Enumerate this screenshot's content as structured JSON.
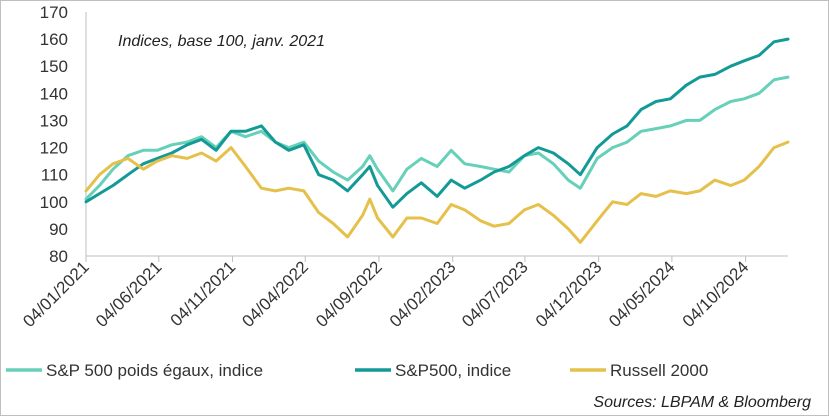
{
  "chart_data": {
    "type": "line",
    "annotation": "Indices, base 100, janv. 2021",
    "source": "Sources: LBPAM & Bloomberg",
    "ylim": [
      80,
      170
    ],
    "yticks": [
      80,
      90,
      100,
      110,
      120,
      130,
      140,
      150,
      160,
      170
    ],
    "x_start": "2021-01-04",
    "x_end": "2024-12-31",
    "xticks": [
      {
        "date": "2021-01-04",
        "label": "04/01/2021"
      },
      {
        "date": "2021-06-04",
        "label": "04/06/2021"
      },
      {
        "date": "2021-11-04",
        "label": "04/11/2021"
      },
      {
        "date": "2022-04-04",
        "label": "04/04/2022"
      },
      {
        "date": "2022-09-04",
        "label": "04/09/2022"
      },
      {
        "date": "2023-02-04",
        "label": "04/02/2023"
      },
      {
        "date": "2023-07-04",
        "label": "04/07/2023"
      },
      {
        "date": "2023-12-04",
        "label": "04/12/2023"
      },
      {
        "date": "2024-05-04",
        "label": "04/05/2024"
      },
      {
        "date": "2024-10-04",
        "label": "04/10/2024"
      }
    ],
    "grid": false,
    "legend_position": "bottom",
    "series": [
      {
        "name": "S&P 500  poids égaux, indice",
        "color": "#66d0b8",
        "points": [
          [
            "2021-01-04",
            101
          ],
          [
            "2021-02-01",
            106
          ],
          [
            "2021-03-01",
            112
          ],
          [
            "2021-04-01",
            117
          ],
          [
            "2021-05-03",
            119
          ],
          [
            "2021-06-01",
            119
          ],
          [
            "2021-07-01",
            121
          ],
          [
            "2021-08-02",
            122
          ],
          [
            "2021-09-01",
            124
          ],
          [
            "2021-10-01",
            120
          ],
          [
            "2021-11-01",
            126
          ],
          [
            "2021-12-01",
            124
          ],
          [
            "2022-01-03",
            126
          ],
          [
            "2022-02-01",
            122
          ],
          [
            "2022-03-01",
            120
          ],
          [
            "2022-04-01",
            122
          ],
          [
            "2022-05-02",
            115
          ],
          [
            "2022-06-01",
            111
          ],
          [
            "2022-07-01",
            108
          ],
          [
            "2022-08-01",
            113
          ],
          [
            "2022-08-16",
            117
          ],
          [
            "2022-09-01",
            112
          ],
          [
            "2022-10-03",
            104
          ],
          [
            "2022-11-01",
            112
          ],
          [
            "2022-12-01",
            116
          ],
          [
            "2023-01-03",
            113
          ],
          [
            "2023-02-01",
            119
          ],
          [
            "2023-03-01",
            114
          ],
          [
            "2023-04-03",
            113
          ],
          [
            "2023-05-01",
            112
          ],
          [
            "2023-06-01",
            111
          ],
          [
            "2023-07-03",
            117
          ],
          [
            "2023-08-01",
            118
          ],
          [
            "2023-09-01",
            114
          ],
          [
            "2023-10-02",
            108
          ],
          [
            "2023-10-27",
            105
          ],
          [
            "2023-12-01",
            116
          ],
          [
            "2024-01-02",
            120
          ],
          [
            "2024-02-01",
            122
          ],
          [
            "2024-03-01",
            126
          ],
          [
            "2024-04-01",
            127
          ],
          [
            "2024-05-01",
            128
          ],
          [
            "2024-06-03",
            130
          ],
          [
            "2024-07-01",
            130
          ],
          [
            "2024-08-01",
            134
          ],
          [
            "2024-09-03",
            137
          ],
          [
            "2024-10-01",
            138
          ],
          [
            "2024-11-01",
            140
          ],
          [
            "2024-12-02",
            145
          ],
          [
            "2024-12-31",
            146
          ]
        ]
      },
      {
        "name": "S&P500, indice",
        "color": "#149a96",
        "points": [
          [
            "2021-01-04",
            100
          ],
          [
            "2021-02-01",
            103
          ],
          [
            "2021-03-01",
            106
          ],
          [
            "2021-04-01",
            110
          ],
          [
            "2021-05-03",
            114
          ],
          [
            "2021-06-01",
            116
          ],
          [
            "2021-07-01",
            118
          ],
          [
            "2021-08-02",
            121
          ],
          [
            "2021-09-01",
            123
          ],
          [
            "2021-10-01",
            119
          ],
          [
            "2021-11-01",
            126
          ],
          [
            "2021-12-01",
            126
          ],
          [
            "2022-01-03",
            128
          ],
          [
            "2022-02-01",
            122
          ],
          [
            "2022-03-01",
            119
          ],
          [
            "2022-04-01",
            121
          ],
          [
            "2022-05-02",
            110
          ],
          [
            "2022-06-01",
            108
          ],
          [
            "2022-07-01",
            104
          ],
          [
            "2022-08-01",
            110
          ],
          [
            "2022-08-16",
            113
          ],
          [
            "2022-09-01",
            106
          ],
          [
            "2022-10-03",
            98
          ],
          [
            "2022-11-01",
            103
          ],
          [
            "2022-12-01",
            107
          ],
          [
            "2023-01-03",
            102
          ],
          [
            "2023-02-01",
            108
          ],
          [
            "2023-03-01",
            105
          ],
          [
            "2023-04-03",
            108
          ],
          [
            "2023-05-01",
            111
          ],
          [
            "2023-06-01",
            113
          ],
          [
            "2023-07-03",
            117
          ],
          [
            "2023-08-01",
            120
          ],
          [
            "2023-09-01",
            118
          ],
          [
            "2023-10-02",
            114
          ],
          [
            "2023-10-27",
            110
          ],
          [
            "2023-12-01",
            120
          ],
          [
            "2024-01-02",
            125
          ],
          [
            "2024-02-01",
            128
          ],
          [
            "2024-03-01",
            134
          ],
          [
            "2024-04-01",
            137
          ],
          [
            "2024-05-01",
            138
          ],
          [
            "2024-06-03",
            143
          ],
          [
            "2024-07-01",
            146
          ],
          [
            "2024-08-01",
            147
          ],
          [
            "2024-09-03",
            150
          ],
          [
            "2024-10-01",
            152
          ],
          [
            "2024-11-01",
            154
          ],
          [
            "2024-12-02",
            159
          ],
          [
            "2024-12-31",
            160
          ]
        ]
      },
      {
        "name": "Russell 2000",
        "color": "#e5c04a",
        "points": [
          [
            "2021-01-04",
            104
          ],
          [
            "2021-02-01",
            110
          ],
          [
            "2021-03-01",
            114
          ],
          [
            "2021-04-01",
            116
          ],
          [
            "2021-05-03",
            112
          ],
          [
            "2021-06-01",
            115
          ],
          [
            "2021-07-01",
            117
          ],
          [
            "2021-08-02",
            116
          ],
          [
            "2021-09-01",
            118
          ],
          [
            "2021-10-01",
            115
          ],
          [
            "2021-11-01",
            120
          ],
          [
            "2021-12-01",
            113
          ],
          [
            "2022-01-03",
            105
          ],
          [
            "2022-02-01",
            104
          ],
          [
            "2022-03-01",
            105
          ],
          [
            "2022-04-01",
            104
          ],
          [
            "2022-05-02",
            96
          ],
          [
            "2022-06-01",
            92
          ],
          [
            "2022-07-01",
            87
          ],
          [
            "2022-08-01",
            95
          ],
          [
            "2022-08-16",
            101
          ],
          [
            "2022-09-01",
            94
          ],
          [
            "2022-10-03",
            87
          ],
          [
            "2022-11-01",
            94
          ],
          [
            "2022-12-01",
            94
          ],
          [
            "2023-01-03",
            92
          ],
          [
            "2023-02-01",
            99
          ],
          [
            "2023-03-01",
            97
          ],
          [
            "2023-04-03",
            93
          ],
          [
            "2023-05-01",
            91
          ],
          [
            "2023-06-01",
            92
          ],
          [
            "2023-07-03",
            97
          ],
          [
            "2023-08-01",
            99
          ],
          [
            "2023-09-01",
            95
          ],
          [
            "2023-10-02",
            90
          ],
          [
            "2023-10-27",
            85
          ],
          [
            "2023-12-01",
            93
          ],
          [
            "2024-01-02",
            100
          ],
          [
            "2024-02-01",
            99
          ],
          [
            "2024-03-01",
            103
          ],
          [
            "2024-04-01",
            102
          ],
          [
            "2024-05-01",
            104
          ],
          [
            "2024-06-03",
            103
          ],
          [
            "2024-07-01",
            104
          ],
          [
            "2024-08-01",
            108
          ],
          [
            "2024-09-03",
            106
          ],
          [
            "2024-10-01",
            108
          ],
          [
            "2024-11-01",
            113
          ],
          [
            "2024-12-02",
            120
          ],
          [
            "2024-12-31",
            122
          ]
        ]
      }
    ]
  }
}
